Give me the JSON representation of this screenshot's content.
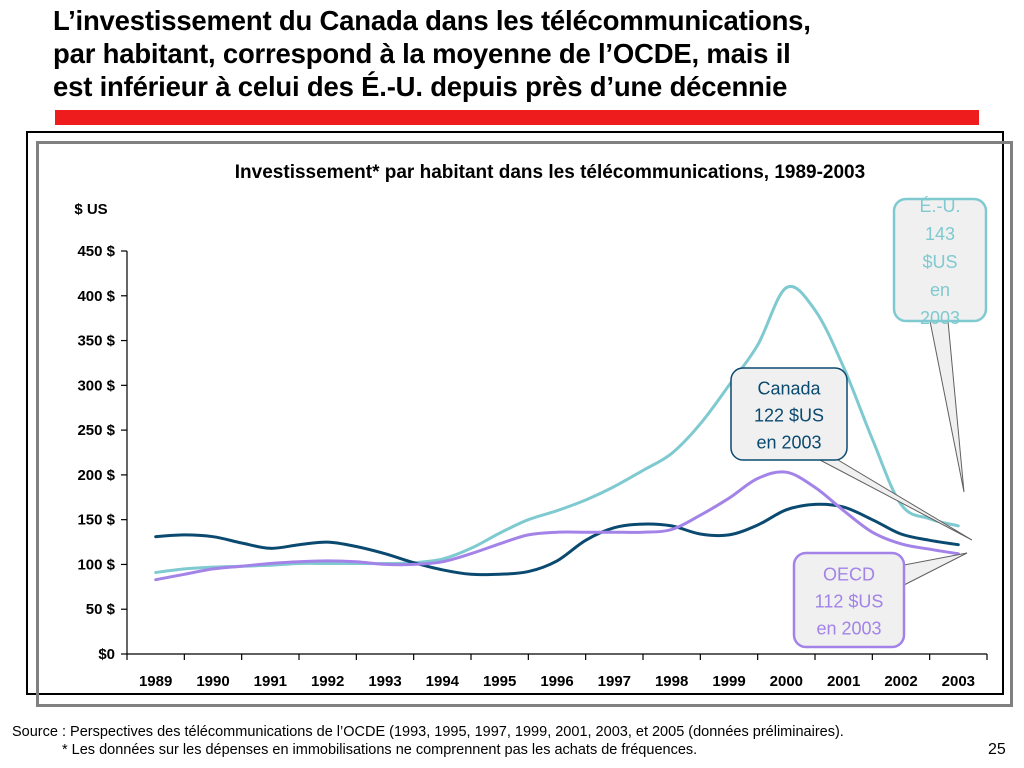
{
  "slide": {
    "title_lines": [
      "L’investissement du Canada dans les télécommunications,",
      "par habitant, correspond à la moyenne de l’OCDE, mais il",
      "est inférieur à celui des É.-U. depuis près d’une décennie"
    ],
    "source": "Source : Perspectives des télécommunications de l’OCDE (1993, 1995, 1997, 1999, 2001, 2003, et 2005 (données préliminaires).",
    "footnote": "* Les données sur les dépenses en immobilisations ne comprennent pas les achats de fréquences.",
    "page_number": "25",
    "accent_color": "#ee1c1c"
  },
  "chart_data": {
    "type": "line",
    "title": "Investissement* par habitant dans les télécommunications, 1989-2003",
    "ylabel": "$ US",
    "ylim": [
      0,
      450
    ],
    "yticks": [
      0,
      50,
      100,
      150,
      200,
      250,
      300,
      350,
      400,
      450
    ],
    "ytick_labels": [
      "$0",
      "50 $",
      "100 $",
      "150 $",
      "200 $",
      "250 $",
      "300 $",
      "350 $",
      "400 $",
      "450 $"
    ],
    "categories": [
      "1989",
      "1990",
      "1991",
      "1992",
      "1993",
      "1994",
      "1995",
      "1996",
      "1997",
      "1998",
      "1999",
      "2000",
      "2001",
      "2002",
      "2003"
    ],
    "grid": false,
    "smooth": true,
    "series": [
      {
        "color": "#7fcad0",
        "x": [
          1989.0,
          1989.5,
          1990.0,
          1990.5,
          1991.0,
          1991.5,
          1992.0,
          1992.5,
          1993.0,
          1993.5,
          1994.0,
          1994.5,
          1995.0,
          1995.5,
          1996.0,
          1996.5,
          1997.0,
          1997.5,
          1998.0,
          1998.5,
          1999.0,
          1999.5,
          2000.0,
          2000.5,
          2001.0,
          2001.5,
          2002.0,
          2002.5,
          2003.0
        ],
        "values": [
          91,
          95,
          97,
          98,
          99,
          101,
          101,
          101,
          101,
          102,
          106,
          118,
          135,
          150,
          160,
          172,
          187,
          205,
          224,
          257,
          300,
          345,
          409,
          384,
          320,
          240,
          167,
          151,
          143
        ]
      },
      {
        "color": "#0b4a70",
        "x": [
          1989.0,
          1989.5,
          1990.0,
          1990.5,
          1991.0,
          1991.5,
          1992.0,
          1992.5,
          1993.0,
          1993.5,
          1994.0,
          1994.5,
          1995.0,
          1995.5,
          1996.0,
          1996.5,
          1997.0,
          1997.5,
          1998.0,
          1998.5,
          1999.0,
          1999.5,
          2000.0,
          2000.5,
          2001.0,
          2001.5,
          2002.0,
          2002.5,
          2003.0
        ],
        "values": [
          131,
          133,
          131,
          124,
          118,
          122,
          125,
          120,
          112,
          102,
          94,
          89,
          89,
          92,
          104,
          127,
          141,
          145,
          143,
          134,
          133,
          144,
          161,
          167,
          164,
          150,
          134,
          127,
          122
        ]
      },
      {
        "color": "#a383e8",
        "x": [
          1989.0,
          1989.5,
          1990.0,
          1990.5,
          1991.0,
          1991.5,
          1992.0,
          1992.5,
          1993.0,
          1993.5,
          1994.0,
          1994.5,
          1995.0,
          1995.5,
          1996.0,
          1996.5,
          1997.0,
          1997.5,
          1998.0,
          1998.5,
          1999.0,
          1999.5,
          2000.0,
          2000.5,
          2001.0,
          2001.5,
          2002.0,
          2002.5,
          2003.0
        ],
        "values": [
          83,
          89,
          95,
          98,
          101,
          103,
          104,
          103,
          100,
          100,
          103,
          112,
          123,
          133,
          136,
          136,
          136,
          136,
          139,
          155,
          174,
          196,
          203,
          186,
          160,
          136,
          123,
          117,
          112
        ]
      }
    ],
    "annotations": [
      {
        "lines": [
          "É.-U.",
          "143",
          "$US",
          "en",
          "2003"
        ],
        "color": "#7fcad0",
        "text_color": "#7fcad0"
      },
      {
        "lines": [
          "Canada",
          "122 $US",
          "en 2003"
        ],
        "color": "#0b4a70",
        "text_color": "#0b4a70"
      },
      {
        "lines": [
          "OECD",
          "112 $US",
          "en 2003"
        ],
        "color": "#a383e8",
        "text_color": "#a383e8"
      }
    ]
  }
}
